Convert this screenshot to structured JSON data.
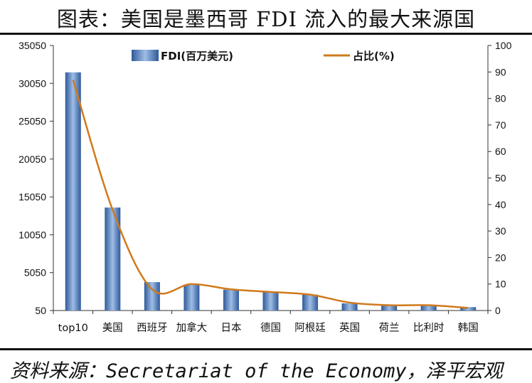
{
  "header": {
    "title": "图表：美国是墨西哥 FDI 流入的最大来源国"
  },
  "footer": {
    "source": "资料来源：Secretariat of the Economy，泽平宏观"
  },
  "chart_data": {
    "type": "bar",
    "categories": [
      "top10",
      "美国",
      "西班牙",
      "加拿大",
      "日本",
      "德国",
      "阿根廷",
      "英国",
      "荷兰",
      "比利时",
      "韩国"
    ],
    "series": [
      {
        "name": "FDI(百万美元)",
        "type": "bar",
        "axis": "left",
        "values": [
          31500,
          13650,
          3800,
          3450,
          2800,
          2500,
          2150,
          1000,
          850,
          700,
          500
        ],
        "color": "#5b85c4"
      },
      {
        "name": "占比(%)",
        "type": "line",
        "axis": "right",
        "values": [
          87,
          38,
          8,
          10,
          8,
          7,
          6,
          3,
          2,
          2,
          1
        ],
        "color": "#d07a1c"
      }
    ],
    "y_left": {
      "ticks": [
        50,
        5050,
        10050,
        15050,
        20050,
        25050,
        30050,
        35050
      ],
      "lim": [
        50,
        35050
      ]
    },
    "y_right": {
      "ticks": [
        0,
        10,
        20,
        30,
        40,
        50,
        60,
        70,
        80,
        90,
        100
      ],
      "lim": [
        0,
        100
      ]
    },
    "legend": {
      "placement": "top"
    },
    "grid": false
  }
}
